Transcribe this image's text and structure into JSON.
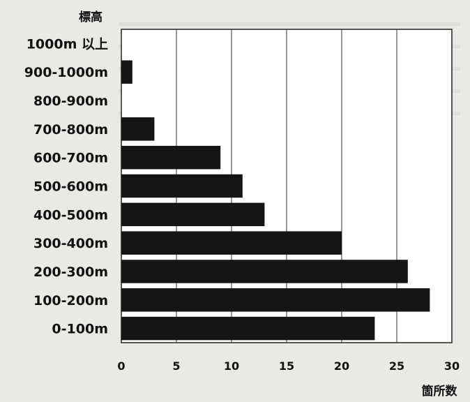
{
  "chart_data": {
    "type": "bar",
    "orientation": "horizontal",
    "ylabel": "標高",
    "xlabel": "箇所数",
    "categories": [
      "0-100m",
      "100-200m",
      "200-300m",
      "300-400m",
      "400-500m",
      "500-600m",
      "600-700m",
      "700-800m",
      "800-900m",
      "900-1000m",
      "1000m 以上"
    ],
    "values": [
      23,
      28,
      26,
      20,
      13,
      11,
      9,
      3,
      0,
      1,
      0
    ],
    "xlim": [
      0,
      30
    ],
    "xticks": [
      "0",
      "5",
      "10",
      "15",
      "20",
      "25",
      "30"
    ],
    "grid": "vertical",
    "bar_color": "#151515"
  }
}
